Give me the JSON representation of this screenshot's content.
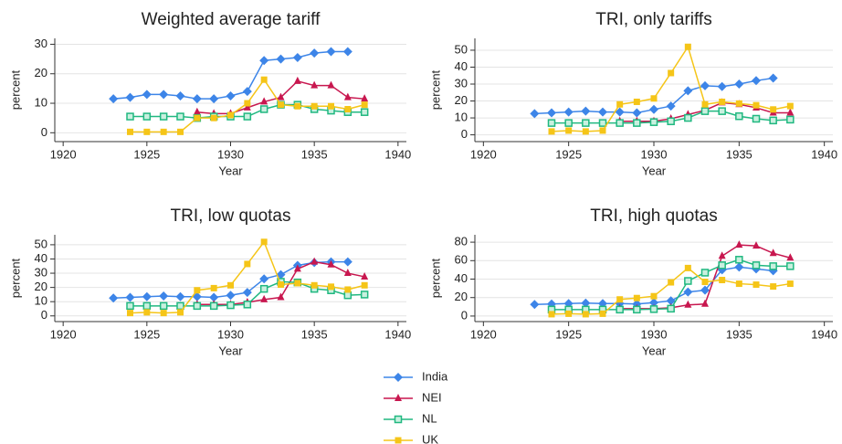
{
  "chart_data": [
    {
      "type": "line",
      "title": "Weighted average tariff",
      "xlabel": "Year",
      "ylabel": "percent",
      "x": [
        1923,
        1924,
        1925,
        1926,
        1927,
        1928,
        1929,
        1930,
        1931,
        1932,
        1933,
        1934,
        1935,
        1936,
        1937,
        1938
      ],
      "xlim": [
        1919.5,
        1940.5
      ],
      "xticks": [
        1920,
        1925,
        1930,
        1935,
        1940
      ],
      "ylim": [
        -3,
        32
      ],
      "yticks": [
        0,
        10,
        20,
        30
      ],
      "grid": true,
      "series": [
        {
          "name": "India",
          "color": "#3d85e8",
          "marker": "diamond",
          "values": [
            11.5,
            12,
            13,
            13,
            12.5,
            11.5,
            11.5,
            12.5,
            14,
            24.5,
            25,
            25.5,
            27,
            27.5,
            27.5,
            null
          ]
        },
        {
          "name": "NEI",
          "color": "#c8174f",
          "marker": "triangle",
          "values": [
            null,
            null,
            null,
            null,
            null,
            7,
            6.5,
            6.5,
            8.5,
            10.5,
            12,
            17.5,
            16,
            16,
            12,
            11.5
          ]
        },
        {
          "name": "NL",
          "color": "#20b880",
          "marker": "hollow-square",
          "values": [
            null,
            5.5,
            5.5,
            5.5,
            5.5,
            5,
            5.5,
            5.5,
            5.5,
            8,
            9.5,
            9.5,
            8,
            7.5,
            7,
            7
          ]
        },
        {
          "name": "UK",
          "color": "#f5c518",
          "marker": "square",
          "values": [
            null,
            0.3,
            0.3,
            0.3,
            0.3,
            5,
            5,
            6,
            10,
            18,
            9.5,
            9,
            9,
            9,
            8,
            9.5
          ]
        }
      ]
    },
    {
      "type": "line",
      "title": "TRI, only tariffs",
      "xlabel": "Year",
      "ylabel": "percent",
      "x": [
        1923,
        1924,
        1925,
        1926,
        1927,
        1928,
        1929,
        1930,
        1931,
        1932,
        1933,
        1934,
        1935,
        1936,
        1937,
        1938
      ],
      "xlim": [
        1919.5,
        1940.5
      ],
      "xticks": [
        1920,
        1925,
        1930,
        1935,
        1940
      ],
      "ylim": [
        -4,
        57
      ],
      "yticks": [
        0,
        10,
        20,
        30,
        40,
        50
      ],
      "grid": true,
      "series": [
        {
          "name": "India",
          "color": "#3d85e8",
          "marker": "diamond",
          "values": [
            12.5,
            13,
            13.5,
            14,
            13.5,
            13.5,
            13,
            15,
            17,
            26,
            29,
            28.5,
            30,
            32,
            33.5,
            null
          ]
        },
        {
          "name": "NEI",
          "color": "#c8174f",
          "marker": "triangle",
          "values": [
            null,
            null,
            null,
            null,
            null,
            8,
            8,
            8,
            9.5,
            12,
            14.5,
            19,
            18,
            16,
            13,
            13
          ]
        },
        {
          "name": "NL",
          "color": "#20b880",
          "marker": "hollow-square",
          "values": [
            null,
            7,
            7,
            7,
            7,
            7,
            7,
            7.5,
            8,
            10,
            14,
            14,
            11,
            9.5,
            8.5,
            9
          ]
        },
        {
          "name": "UK",
          "color": "#f5c518",
          "marker": "square",
          "values": [
            null,
            2,
            2.5,
            2,
            2.5,
            18,
            19.5,
            21.5,
            36.5,
            52,
            18,
            19.5,
            18.5,
            17.5,
            15,
            17
          ]
        }
      ]
    },
    {
      "type": "line",
      "title": "TRI, low quotas",
      "xlabel": "Year",
      "ylabel": "percent",
      "x": [
        1923,
        1924,
        1925,
        1926,
        1927,
        1928,
        1929,
        1930,
        1931,
        1932,
        1933,
        1934,
        1935,
        1936,
        1937,
        1938
      ],
      "xlim": [
        1919.5,
        1940.5
      ],
      "xticks": [
        1920,
        1925,
        1930,
        1935,
        1940
      ],
      "ylim": [
        -4,
        57
      ],
      "yticks": [
        0,
        10,
        20,
        30,
        40,
        50
      ],
      "grid": true,
      "series": [
        {
          "name": "India",
          "color": "#3d85e8",
          "marker": "diamond",
          "values": [
            12.5,
            13,
            13.5,
            14,
            13.5,
            13.5,
            13,
            14.5,
            16.5,
            26,
            29,
            35.5,
            37.5,
            38,
            38,
            null
          ]
        },
        {
          "name": "NEI",
          "color": "#c8174f",
          "marker": "triangle",
          "values": [
            null,
            null,
            null,
            null,
            null,
            8,
            8,
            8,
            9.5,
            11.5,
            13,
            33,
            38,
            36,
            30,
            27.5
          ]
        },
        {
          "name": "NL",
          "color": "#20b880",
          "marker": "hollow-square",
          "values": [
            null,
            7,
            7,
            7,
            7,
            7,
            7,
            7.5,
            8,
            19,
            24,
            23.5,
            19,
            18,
            14.5,
            15
          ]
        },
        {
          "name": "UK",
          "color": "#f5c518",
          "marker": "square",
          "values": [
            null,
            2,
            2.5,
            2,
            2.5,
            18,
            19.5,
            21.5,
            36.5,
            52,
            22,
            23,
            21.5,
            20.5,
            18.5,
            21.5
          ]
        }
      ]
    },
    {
      "type": "line",
      "title": "TRI, high quotas",
      "xlabel": "Year",
      "ylabel": "percent",
      "x": [
        1923,
        1924,
        1925,
        1926,
        1927,
        1928,
        1929,
        1930,
        1931,
        1932,
        1933,
        1934,
        1935,
        1936,
        1937,
        1938
      ],
      "xlim": [
        1919.5,
        1940.5
      ],
      "xticks": [
        1920,
        1925,
        1930,
        1935,
        1940
      ],
      "ylim": [
        -6,
        88
      ],
      "yticks": [
        0,
        20,
        40,
        60,
        80
      ],
      "grid": true,
      "series": [
        {
          "name": "India",
          "color": "#3d85e8",
          "marker": "diamond",
          "values": [
            12.5,
            13,
            13.5,
            14,
            13.5,
            13.5,
            13,
            14.5,
            16.5,
            26,
            28,
            50,
            53,
            51,
            49,
            null
          ]
        },
        {
          "name": "NEI",
          "color": "#c8174f",
          "marker": "triangle",
          "values": [
            null,
            null,
            null,
            null,
            null,
            8,
            8,
            8,
            9,
            12,
            13,
            65,
            77,
            76,
            68,
            63
          ]
        },
        {
          "name": "NL",
          "color": "#20b880",
          "marker": "hollow-square",
          "values": [
            null,
            7,
            7,
            7,
            7,
            7,
            7,
            7.5,
            8,
            38,
            47,
            55,
            61,
            55,
            54,
            54
          ]
        },
        {
          "name": "UK",
          "color": "#f5c518",
          "marker": "square",
          "values": [
            null,
            2,
            2.5,
            2,
            2.5,
            18,
            19.5,
            21.5,
            36.5,
            52,
            37,
            39,
            35,
            34,
            32,
            35
          ]
        }
      ]
    }
  ]
}
